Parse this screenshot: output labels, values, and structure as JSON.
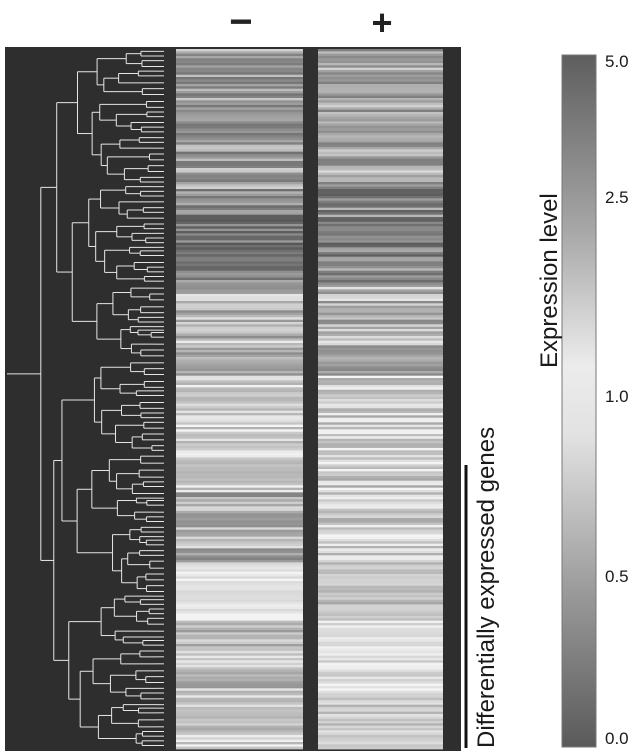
{
  "columns": [
    {
      "label": "−"
    },
    {
      "label": "+"
    }
  ],
  "side_label": "Differentially expressed genes",
  "colorbar": {
    "label": "Expression level",
    "ticks": [
      "5.0",
      "2.5",
      "1.0",
      "0.5",
      "0.0"
    ]
  },
  "chart_data": {
    "type": "heatmap",
    "title": "",
    "columns": [
      "−",
      "+"
    ],
    "color_scale": {
      "label": "Expression level",
      "ticks": [
        5.0,
        2.5,
        1.0,
        0.5,
        0.0
      ],
      "range": [
        0.0,
        5.0
      ],
      "colors": {
        "high": "#5a5a5a",
        "mid": "#e8e8e8",
        "low": "#6a6a6a"
      }
    },
    "row_dendrogram": true,
    "bracket_label": "Differentially expressed genes",
    "row_blocks": [
      {
        "rows": 60,
        "minus": 2.6,
        "plus": 2.4
      },
      {
        "rows": 40,
        "minus": 3.4,
        "plus": 3.2
      },
      {
        "rows": 40,
        "minus": 2.0,
        "plus": 2.1
      },
      {
        "rows": 50,
        "minus": 1.4,
        "plus": 1.6
      },
      {
        "rows": 30,
        "minus": 2.2,
        "plus": 1.5
      },
      {
        "rows": 25,
        "minus": 1.0,
        "plus": 0.4
      },
      {
        "rows": 30,
        "minus": 1.8,
        "plus": 1.2
      },
      {
        "rows": 25,
        "minus": 1.5,
        "plus": 0.5
      }
    ]
  }
}
